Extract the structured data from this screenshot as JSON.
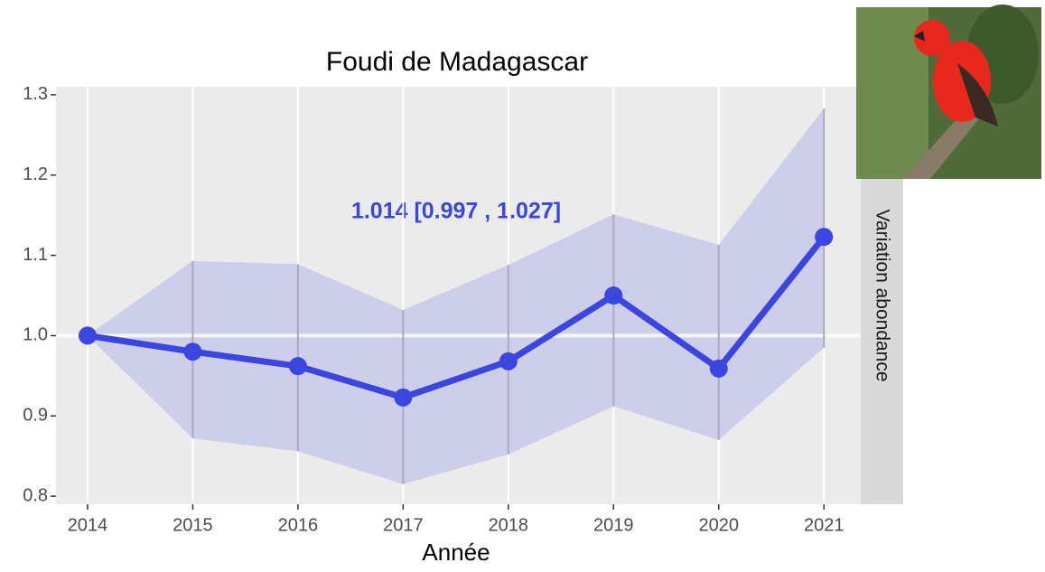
{
  "chart_data": {
    "type": "line",
    "title": "Foudi de Madagascar",
    "x_label": "Année",
    "strip_label": "Variation abondance",
    "annotation": "1.014  [0.997 , 1.027]",
    "x": [
      2014,
      2015,
      2016,
      2017,
      2018,
      2019,
      2020,
      2021
    ],
    "values": [
      1.0,
      0.98,
      0.962,
      0.923,
      0.968,
      1.05,
      0.959,
      1.123
    ],
    "lower": [
      1.0,
      0.872,
      0.856,
      0.815,
      0.852,
      0.912,
      0.87,
      0.985
    ],
    "upper": [
      1.0,
      1.093,
      1.089,
      1.032,
      1.088,
      1.151,
      1.113,
      1.283
    ],
    "color": "#3b45e0",
    "ribbon_color": "#c7c9ea",
    "reference_line": 1,
    "xlim": [
      2013.7,
      2021.35
    ],
    "xticks": [
      2014,
      2015,
      2016,
      2017,
      2018,
      2019,
      2020,
      2021
    ],
    "ylim": [
      0.79,
      1.31
    ],
    "yticks": [
      0.8,
      0.9,
      {
        "value": 1,
        "label": "1.0"
      },
      1.1,
      1.2,
      1.3
    ],
    "grid": "x"
  }
}
